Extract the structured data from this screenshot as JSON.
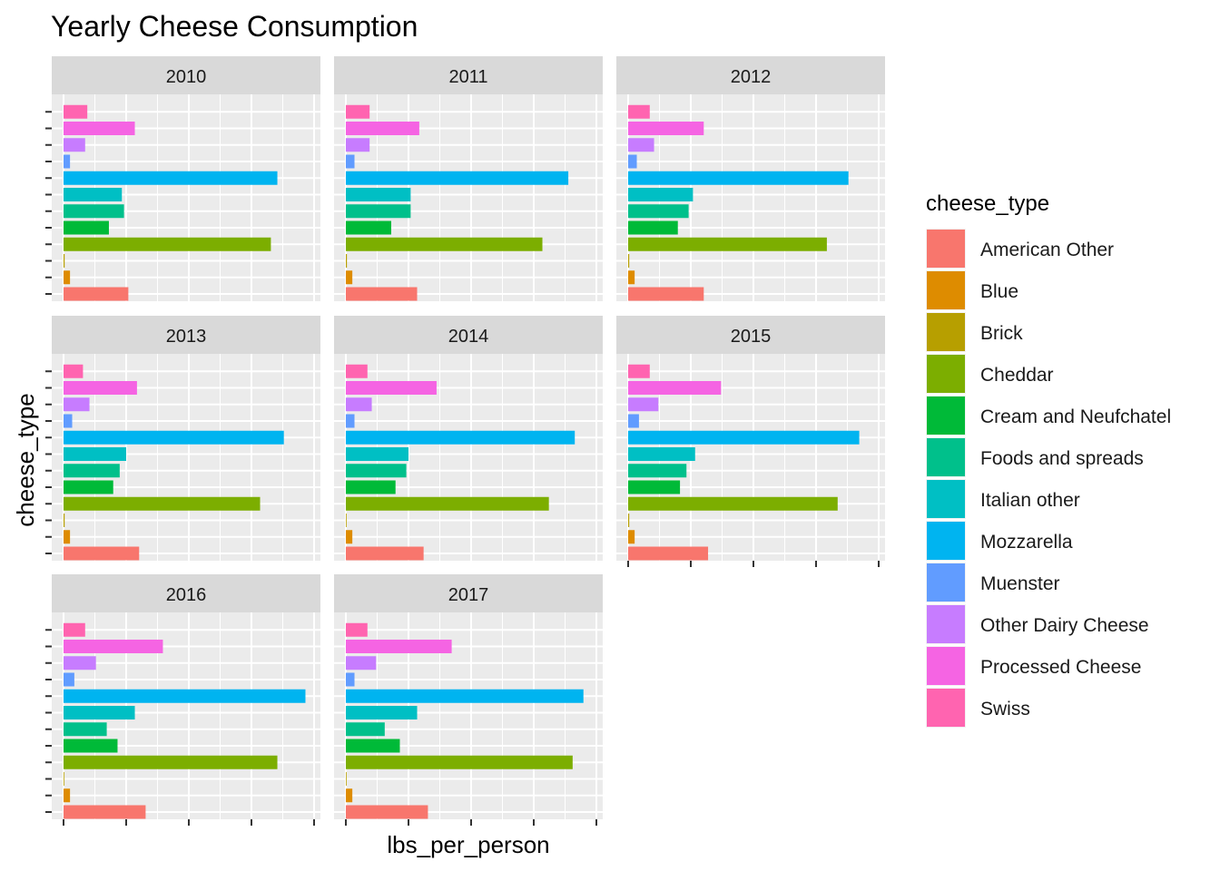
{
  "chart_data": {
    "type": "bar",
    "orientation": "horizontal",
    "facet_by": "year",
    "title": "Yearly Cheese Consumption",
    "xlabel": "lbs_per_person",
    "ylabel": "cheese_type",
    "legend_title": "cheese_type",
    "legend_position": "right",
    "grid": true,
    "x_tick_labels_shown": false,
    "y_tick_labels_shown": false,
    "xlim": [
      0,
      11.6
    ],
    "categories": [
      "American Other",
      "Blue",
      "Brick",
      "Cheddar",
      "Cream and Neufchatel",
      "Foods and spreads",
      "Italian other",
      "Mozzarella",
      "Muenster",
      "Other Dairy Cheese",
      "Processed Cheese",
      "Swiss"
    ],
    "colors": [
      "#F8766D",
      "#DE8C00",
      "#B79F00",
      "#7CAE00",
      "#00BA38",
      "#00C08B",
      "#00BFC4",
      "#00B4F0",
      "#619CFF",
      "#C77CFF",
      "#F564E3",
      "#FF64B0"
    ],
    "facets": [
      {
        "label": "2010",
        "values": [
          3.0,
          0.3,
          0.05,
          9.6,
          2.1,
          2.8,
          2.7,
          9.9,
          0.3,
          1.0,
          3.3,
          1.1
        ]
      },
      {
        "label": "2011",
        "values": [
          3.3,
          0.3,
          0.05,
          9.1,
          2.1,
          3.0,
          3.0,
          10.3,
          0.4,
          1.1,
          3.4,
          1.1
        ]
      },
      {
        "label": "2012",
        "values": [
          3.5,
          0.3,
          0.05,
          9.2,
          2.3,
          2.8,
          3.0,
          10.2,
          0.4,
          1.2,
          3.5,
          1.0
        ]
      },
      {
        "label": "2013",
        "values": [
          3.5,
          0.3,
          0.05,
          9.1,
          2.3,
          2.6,
          2.9,
          10.2,
          0.4,
          1.2,
          3.4,
          0.9
        ]
      },
      {
        "label": "2014",
        "values": [
          3.6,
          0.3,
          0.0,
          9.4,
          2.3,
          2.8,
          2.9,
          10.6,
          0.4,
          1.2,
          4.2,
          1.0
        ]
      },
      {
        "label": "2015",
        "values": [
          3.7,
          0.3,
          0.05,
          9.7,
          2.4,
          2.7,
          3.1,
          10.7,
          0.5,
          1.4,
          4.3,
          1.0
        ]
      },
      {
        "label": "2016",
        "values": [
          3.8,
          0.3,
          0.0,
          9.9,
          2.5,
          2.0,
          3.3,
          11.2,
          0.5,
          1.5,
          4.6,
          1.0
        ]
      },
      {
        "label": "2017",
        "values": [
          3.8,
          0.3,
          0.0,
          10.5,
          2.5,
          1.8,
          3.3,
          11.0,
          0.4,
          1.4,
          4.9,
          1.0
        ]
      }
    ]
  }
}
